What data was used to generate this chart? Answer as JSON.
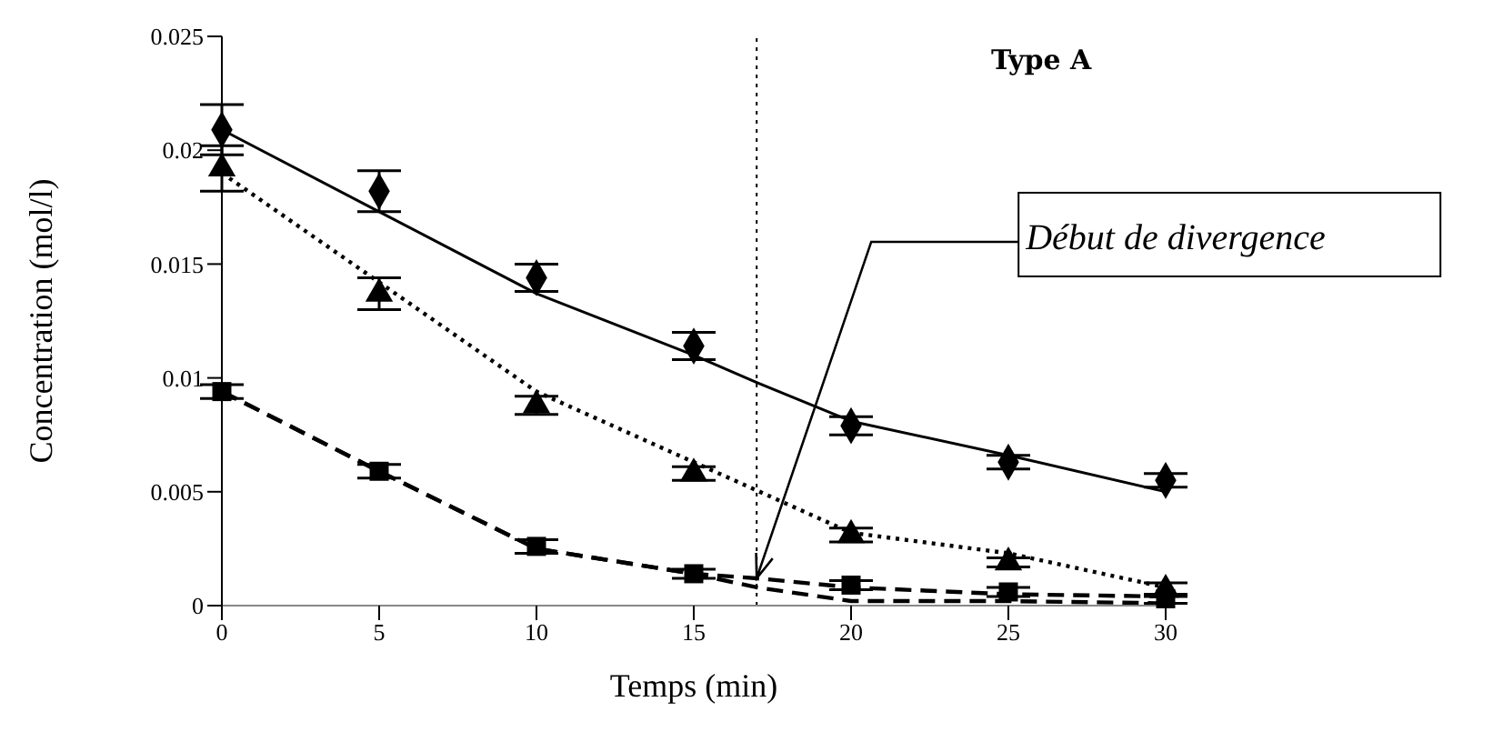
{
  "chart_data": {
    "type": "scatter",
    "title": "Type A",
    "xlabel": "Temps (min)",
    "ylabel": "Concentration (mol/l)",
    "xlim": [
      0,
      30
    ],
    "xticks": [
      0,
      5,
      10,
      15,
      20,
      25,
      30
    ],
    "ylim": [
      0,
      0.025
    ],
    "yticks": [
      0,
      0.005,
      0.01,
      0.015,
      0.02,
      0.025
    ],
    "series": [
      {
        "type": "scatter",
        "color": "#000000",
        "marker": "diamond",
        "x": [
          0,
          5,
          10,
          15,
          20,
          25,
          30
        ],
        "values": [
          0.0209,
          0.0182,
          0.0144,
          0.0114,
          0.0079,
          0.0063,
          0.0055
        ],
        "errors": [
          0.0011,
          0.0009,
          0.0006,
          0.0006,
          0.0004,
          0.0003,
          0.0003
        ]
      },
      {
        "type": "scatter",
        "color": "#000000",
        "marker": "triangle",
        "x": [
          0,
          5,
          10,
          15,
          20,
          25,
          30
        ],
        "values": [
          0.0192,
          0.0137,
          0.0088,
          0.0058,
          0.0031,
          0.0019,
          0.0007
        ],
        "errors": [
          0.001,
          0.0007,
          0.0004,
          0.0003,
          0.0003,
          0.0002,
          0.0003
        ]
      },
      {
        "type": "scatter",
        "color": "#000000",
        "marker": "square",
        "x": [
          0,
          5,
          10,
          15,
          20,
          25,
          30
        ],
        "values": [
          0.0094,
          0.0059,
          0.0026,
          0.0014,
          0.0009,
          0.0006,
          0.0003
        ],
        "errors": [
          0.0003,
          0.0003,
          0.0003,
          0.0002,
          0.0002,
          0.0002,
          0.0002
        ]
      },
      {
        "type": "line",
        "color": "#000000",
        "marker": "none",
        "line_style": "solid",
        "x": [
          0,
          5,
          10,
          15,
          17,
          20,
          25,
          30
        ],
        "values": [
          0.0209,
          0.0173,
          0.0137,
          0.011,
          0.0098,
          0.0081,
          0.0066,
          0.005
        ]
      },
      {
        "type": "line",
        "color": "#000000",
        "marker": "none",
        "line_style": "dotted",
        "x": [
          0,
          5,
          10,
          15,
          20,
          25,
          30
        ],
        "values": [
          0.019,
          0.0142,
          0.0094,
          0.0063,
          0.0032,
          0.0023,
          0.0008
        ]
      },
      {
        "type": "line",
        "color": "#000000",
        "marker": "none",
        "line_style": "dashed",
        "x": [
          0,
          5,
          10,
          15,
          17,
          20,
          25,
          30
        ],
        "values": [
          0.0094,
          0.0059,
          0.0025,
          0.0014,
          0.0012,
          0.0008,
          0.0005,
          0.0004
        ]
      },
      {
        "type": "line",
        "color": "#000000",
        "marker": "none",
        "line_style": "dashed",
        "x": [
          0,
          5,
          10,
          15,
          17,
          20,
          25,
          30
        ],
        "values": [
          0.0094,
          0.0059,
          0.0025,
          0.0014,
          0.0008,
          0.0002,
          0.0002,
          0.0001
        ]
      }
    ],
    "ref_lines": [
      {
        "axis": "x",
        "value": 17,
        "line_style": "dotted",
        "color": "#000000"
      }
    ],
    "annotations": [
      {
        "text": "Début de divergence",
        "x": 17,
        "y": 0.0012
      }
    ]
  }
}
